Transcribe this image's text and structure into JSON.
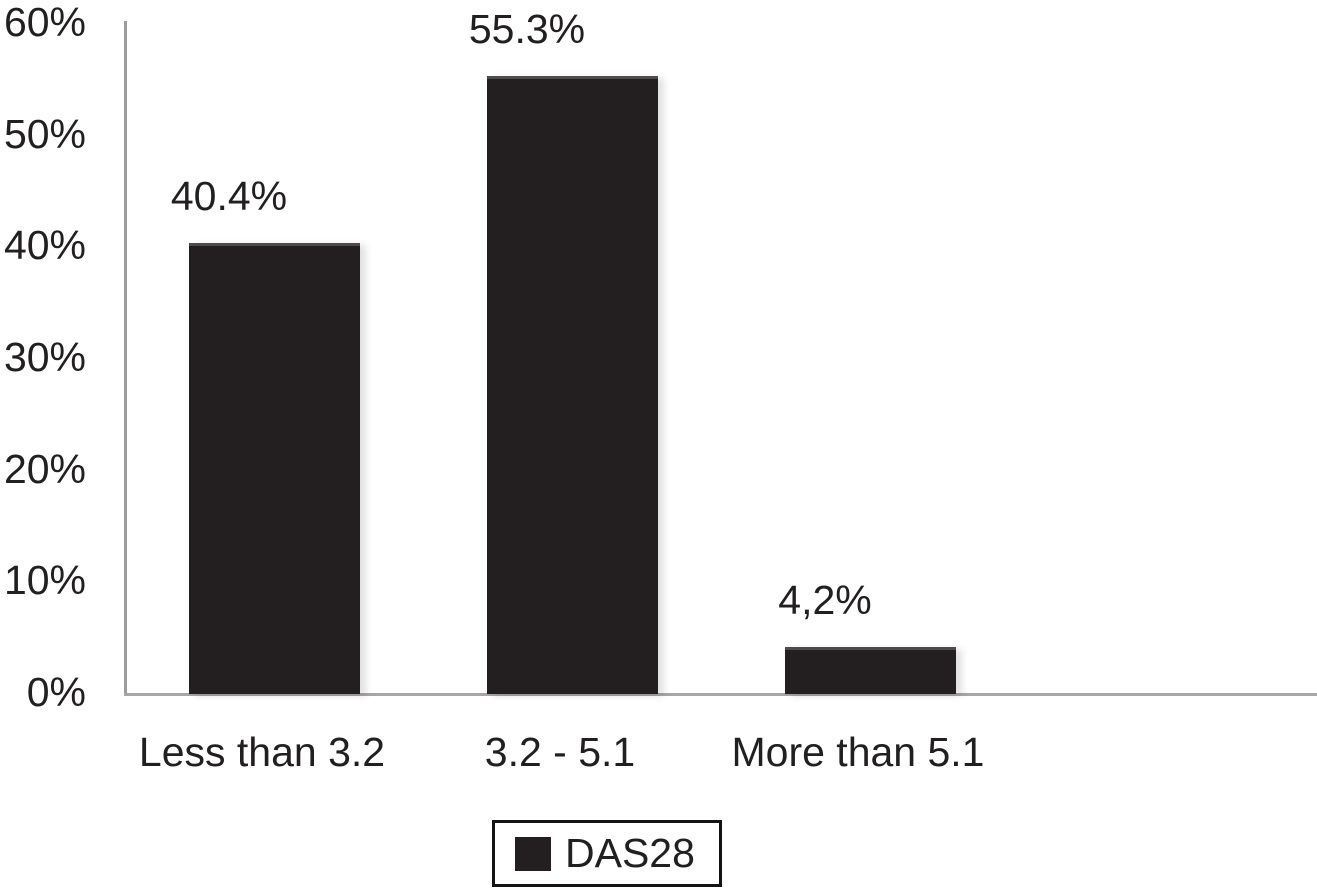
{
  "chart_data": {
    "type": "bar",
    "title": "",
    "xlabel": "",
    "ylabel": "",
    "categories": [
      "Less than 3.2",
      "3.2 - 5.1",
      "More than 5.1"
    ],
    "values": [
      40.4,
      55.3,
      4.2
    ],
    "data_labels": [
      "40.4%",
      "55.3%",
      "4,2%"
    ],
    "series_name": "DAS28",
    "ylim": [
      0,
      60
    ],
    "yticks": [
      "0%",
      "10%",
      "20%",
      "30%",
      "40%",
      "50%",
      "60%"
    ],
    "ytick_values": [
      0,
      10,
      20,
      30,
      40,
      50,
      60
    ],
    "grid": "off",
    "legend_position": "bottom-center",
    "bar_color": "#231f20",
    "axis_line_color": "#a6a6a6",
    "text_color": "#221f20"
  },
  "legend": {
    "label": "DAS28",
    "swatch_icon": "black-square-swatch"
  }
}
